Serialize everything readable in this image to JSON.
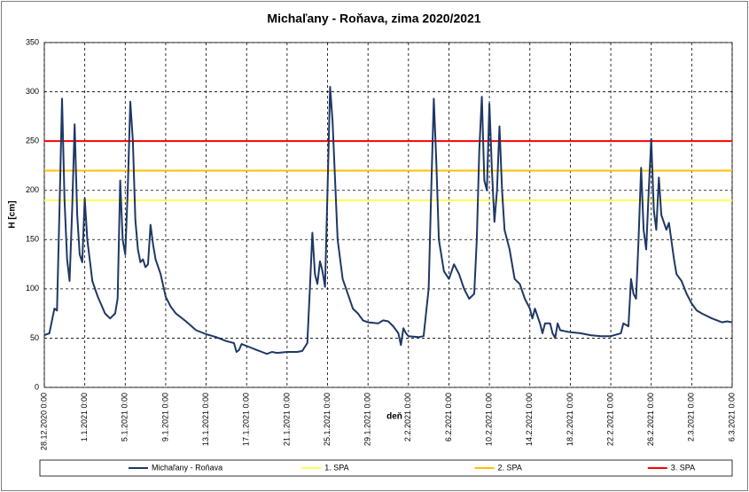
{
  "chart_data": {
    "type": "line",
    "title": "Michaľany - Roňava, zima 2020/2021",
    "y_label": "H [cm]",
    "x_label": "deň",
    "ylim": [
      0,
      350
    ],
    "yticks": [
      0,
      50,
      100,
      150,
      200,
      250,
      300,
      350
    ],
    "xlim": [
      "28.12.2020 0:00",
      "6.3.2021 0:00"
    ],
    "xticks": [
      "28.12.2020 0:00",
      "1.1.2021 0:00",
      "5.1.2021 0:00",
      "9.1.2021 0:00",
      "13.1.2021 0:00",
      "17.1.2021 0:00",
      "21.1.2021 0:00",
      "25.1.2021 0:00",
      "29.1.2021 0:00",
      "2.2.2021 0:00",
      "6.2.2021 0:00",
      "10.2.2021 0:00",
      "14.2.2021 0:00",
      "18.2.2021 0:00",
      "22.2.2021 0:00",
      "26.2.2021 0:00",
      "2.3.2021 0:00",
      "6.3.2021 0:00"
    ],
    "grid": true,
    "legend": "bottom",
    "series": [
      {
        "name": "Michaľany - Roňava",
        "color": "#1f3864",
        "x": [
          "28.12.2020 0:00",
          "28.12.2020 12:00",
          "29.12.2020 0:00",
          "29.12.2020 6:00",
          "29.12.2020 12:00",
          "29.12.2020 18:00",
          "30.12.2020 0:00",
          "30.12.2020 6:00",
          "30.12.2020 12:00",
          "30.12.2020 18:00",
          "31.12.2020 0:00",
          "31.12.2020 6:00",
          "31.12.2020 12:00",
          "31.12.2020 18:00",
          "1.1.2021 0:00",
          "1.1.2021 6:00",
          "1.1.2021 18:00",
          "2.1.2021 6:00",
          "3.1.2021 0:00",
          "3.1.2021 12:00",
          "4.1.2021 0:00",
          "4.1.2021 6:00",
          "4.1.2021 12:00",
          "4.1.2021 18:00",
          "5.1.2021 0:00",
          "5.1.2021 6:00",
          "5.1.2021 12:00",
          "5.1.2021 18:00",
          "6.1.2021 0:00",
          "6.1.2021 6:00",
          "6.1.2021 12:00",
          "6.1.2021 18:00",
          "7.1.2021 0:00",
          "7.1.2021 6:00",
          "7.1.2021 12:00",
          "7.1.2021 18:00",
          "8.1.2021 0:00",
          "8.1.2021 12:00",
          "9.1.2021 0:00",
          "9.1.2021 12:00",
          "10.1.2021 0:00",
          "11.1.2021 0:00",
          "12.1.2021 0:00",
          "13.1.2021 0:00",
          "14.1.2021 0:00",
          "15.1.2021 0:00",
          "15.1.2021 18:00",
          "16.1.2021 0:00",
          "16.1.2021 6:00",
          "16.1.2021 12:00",
          "17.1.2021 0:00",
          "17.1.2021 12:00",
          "18.1.2021 0:00",
          "18.1.2021 12:00",
          "19.1.2021 0:00",
          "19.1.2021 12:00",
          "20.1.2021 0:00",
          "21.1.2021 0:00",
          "22.1.2021 0:00",
          "22.1.2021 12:00",
          "23.1.2021 0:00",
          "23.1.2021 6:00",
          "23.1.2021 12:00",
          "23.1.2021 18:00",
          "24.1.2021 0:00",
          "24.1.2021 6:00",
          "24.1.2021 12:00",
          "24.1.2021 18:00",
          "25.1.2021 0:00",
          "25.1.2021 6:00",
          "25.1.2021 12:00",
          "26.1.2021 0:00",
          "26.1.2021 12:00",
          "27.1.2021 0:00",
          "27.1.2021 12:00",
          "28.1.2021 0:00",
          "28.1.2021 12:00",
          "29.1.2021 0:00",
          "30.1.2021 0:00",
          "30.1.2021 12:00",
          "31.1.2021 0:00",
          "31.1.2021 12:00",
          "1.2.2021 0:00",
          "1.2.2021 6:00",
          "1.2.2021 12:00",
          "1.2.2021 18:00",
          "2.2.2021 0:00",
          "3.2.2021 0:00",
          "3.2.2021 12:00",
          "4.2.2021 0:00",
          "4.2.2021 6:00",
          "4.2.2021 12:00",
          "4.2.2021 18:00",
          "5.2.2021 0:00",
          "5.2.2021 12:00",
          "6.2.2021 0:00",
          "6.2.2021 12:00",
          "7.2.2021 0:00",
          "7.2.2021 12:00",
          "8.2.2021 0:00",
          "8.2.2021 12:00",
          "8.2.2021 18:00",
          "9.2.2021 0:00",
          "9.2.2021 6:00",
          "9.2.2021 12:00",
          "9.2.2021 18:00",
          "10.2.2021 0:00",
          "10.2.2021 6:00",
          "10.2.2021 12:00",
          "10.2.2021 18:00",
          "11.2.2021 0:00",
          "11.2.2021 6:00",
          "11.2.2021 12:00",
          "12.2.2021 0:00",
          "12.2.2021 12:00",
          "13.2.2021 0:00",
          "13.2.2021 12:00",
          "14.2.2021 0:00",
          "14.2.2021 6:00",
          "14.2.2021 12:00",
          "15.2.2021 0:00",
          "15.2.2021 6:00",
          "15.2.2021 12:00",
          "16.2.2021 0:00",
          "16.2.2021 6:00",
          "16.2.2021 12:00",
          "16.2.2021 18:00",
          "17.2.2021 0:00",
          "18.2.2021 0:00",
          "19.2.2021 0:00",
          "20.2.2021 0:00",
          "21.2.2021 0:00",
          "22.2.2021 0:00",
          "23.2.2021 0:00",
          "23.2.2021 6:00",
          "23.2.2021 18:00",
          "24.2.2021 0:00",
          "24.2.2021 6:00",
          "24.2.2021 12:00",
          "24.2.2021 18:00",
          "25.2.2021 0:00",
          "25.2.2021 6:00",
          "25.2.2021 12:00",
          "25.2.2021 18:00",
          "26.2.2021 0:00",
          "26.2.2021 6:00",
          "26.2.2021 12:00",
          "26.2.2021 18:00",
          "27.2.2021 0:00",
          "27.2.2021 12:00",
          "27.2.2021 18:00",
          "28.2.2021 6:00",
          "28.2.2021 12:00",
          "1.3.2021 0:00",
          "1.3.2021 12:00",
          "2.3.2021 0:00",
          "2.3.2021 12:00",
          "3.3.2021 0:00",
          "4.3.2021 0:00",
          "5.3.2021 0:00",
          "5.3.2021 12:00",
          "6.3.2021 0:00"
        ],
        "values": [
          53,
          55,
          80,
          78,
          180,
          293,
          190,
          130,
          108,
          180,
          267,
          175,
          135,
          127,
          192,
          150,
          108,
          93,
          75,
          70,
          75,
          90,
          210,
          150,
          135,
          200,
          290,
          250,
          170,
          140,
          127,
          130,
          122,
          125,
          165,
          145,
          130,
          115,
          92,
          82,
          75,
          67,
          58,
          54,
          51,
          47,
          45,
          36,
          38,
          44,
          42,
          40,
          38,
          36,
          34,
          36,
          35,
          36,
          36,
          37,
          45,
          100,
          157,
          115,
          105,
          128,
          118,
          102,
          200,
          305,
          270,
          150,
          110,
          95,
          80,
          75,
          68,
          66,
          65,
          68,
          67,
          62,
          55,
          43,
          60,
          55,
          52,
          51,
          52,
          100,
          200,
          293,
          230,
          150,
          118,
          110,
          125,
          115,
          100,
          90,
          95,
          150,
          240,
          295,
          210,
          200,
          288,
          220,
          168,
          200,
          265,
          200,
          160,
          140,
          110,
          105,
          90,
          80,
          70,
          80,
          65,
          55,
          65,
          65,
          55,
          50,
          65,
          58,
          56,
          55,
          53,
          52,
          52,
          55,
          65,
          62,
          110,
          95,
          90,
          150,
          223,
          160,
          140,
          200,
          252,
          180,
          160,
          213,
          175,
          160,
          167,
          130,
          115,
          108,
          95,
          85,
          78,
          75,
          70,
          66,
          67,
          66
        ]
      }
    ],
    "thresholds": [
      {
        "name": "1. SPA",
        "value": 190,
        "color": "#ffff50"
      },
      {
        "name": "2. SPA",
        "value": 220,
        "color": "#ffc000"
      },
      {
        "name": "3. SPA",
        "value": 250,
        "color": "#ff0000"
      }
    ]
  }
}
